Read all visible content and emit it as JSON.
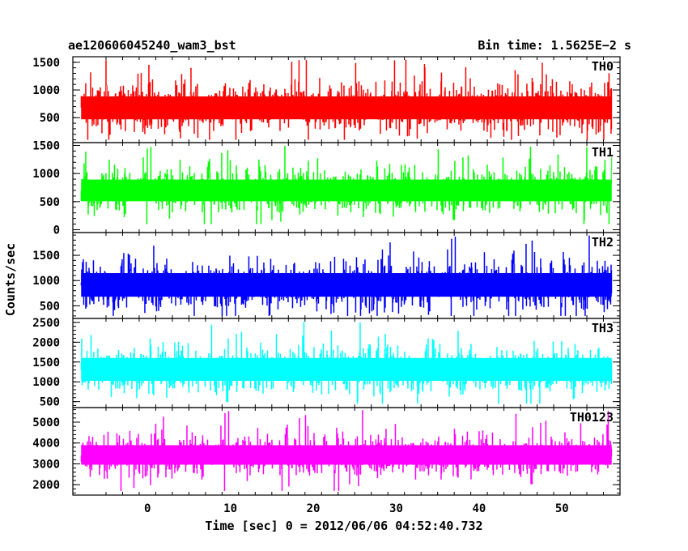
{
  "chart_data": {
    "type": "line",
    "title_left": "ae120606045240_wam3_bst",
    "title_right": "Bin time: 1.5625E−2 s",
    "xlabel": "Time [sec] 0 = 2012/06/06 04:52:40.732",
    "ylabel": "Counts/sec",
    "xlim": [
      -9.0,
      57.0
    ],
    "data_x_range": [
      -8.0,
      56.0
    ],
    "x_ticks": [
      0,
      10,
      20,
      30,
      40,
      50
    ],
    "x_tick_labels": [
      "0",
      "10",
      "20",
      "30",
      "40",
      "50"
    ],
    "panels": [
      {
        "name": "TH0",
        "color": "#ff0000",
        "ylim": [
          50,
          1600
        ],
        "y_ticks": [
          500,
          1000,
          1500
        ],
        "y_tick_labels": [
          "500",
          "1000",
          "1500"
        ],
        "series": {
          "name": "TH0",
          "mean": 680,
          "band_low": 300,
          "band_high": 1050,
          "min": 100,
          "max": 1550
        }
      },
      {
        "name": "TH1",
        "color": "#00ff00",
        "ylim": [
          -50,
          1550
        ],
        "y_ticks": [
          0,
          500,
          1000,
          1500
        ],
        "y_tick_labels": [
          "0",
          "500",
          "1000",
          "1500"
        ],
        "series": {
          "name": "TH1",
          "mean": 700,
          "band_low": 350,
          "band_high": 1050,
          "min": 100,
          "max": 1500
        }
      },
      {
        "name": "TH2",
        "color": "#0000ff",
        "ylim": [
          250,
          1950
        ],
        "y_ticks": [
          500,
          1000,
          1500
        ],
        "y_tick_labels": [
          "500",
          "1000",
          "1500"
        ],
        "series": {
          "name": "TH2",
          "mean": 900,
          "band_low": 500,
          "band_high": 1350,
          "min": 300,
          "max": 1900
        }
      },
      {
        "name": "TH3",
        "color": "#00ffff",
        "ylim": [
          350,
          2600
        ],
        "y_ticks": [
          500,
          1000,
          1500,
          2000,
          2500
        ],
        "y_tick_labels": [
          "500",
          "1000",
          "1500",
          "2000",
          "2500"
        ],
        "series": {
          "name": "TH3",
          "mean": 1300,
          "band_low": 800,
          "band_high": 1850,
          "min": 450,
          "max": 2550
        }
      },
      {
        "name": "TH0123",
        "color": "#ff00ff",
        "ylim": [
          1500,
          5700
        ],
        "y_ticks": [
          2000,
          3000,
          4000,
          5000
        ],
        "y_tick_labels": [
          "2000",
          "3000",
          "4000",
          "5000"
        ],
        "series": {
          "name": "TH0123",
          "mean": 3400,
          "band_low": 2600,
          "band_high": 4300,
          "min": 1700,
          "max": 5600
        }
      }
    ]
  }
}
